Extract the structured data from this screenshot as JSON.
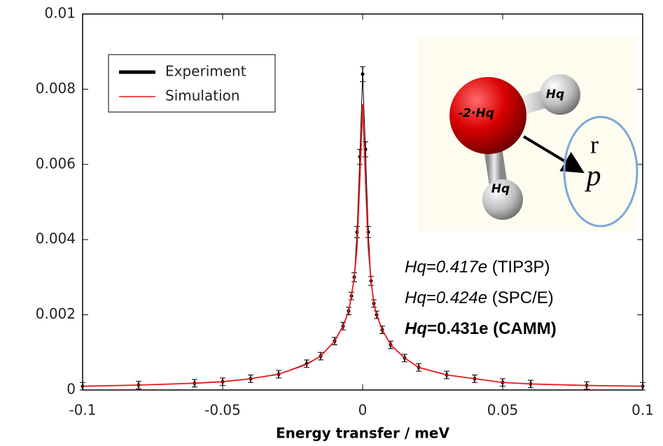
{
  "chart_data": {
    "type": "line",
    "xlabel": "Energy transfer / meV",
    "x": [
      -0.1,
      -0.08,
      -0.06,
      -0.05,
      -0.04,
      -0.03,
      -0.02,
      -0.015,
      -0.01,
      -0.007,
      -0.005,
      -0.004,
      -0.003,
      -0.002,
      -0.001,
      0,
      0.001,
      0.002,
      0.003,
      0.004,
      0.005,
      0.007,
      0.01,
      0.015,
      0.02,
      0.03,
      0.04,
      0.05,
      0.06,
      0.08,
      0.1
    ],
    "series": [
      {
        "name": "Experiment",
        "color": "#000000",
        "values": [
          0.0001,
          0.00013,
          0.00018,
          0.00022,
          0.0003,
          0.00042,
          0.0007,
          0.0009,
          0.0013,
          0.0017,
          0.0021,
          0.0025,
          0.003,
          0.0042,
          0.0062,
          0.0084,
          0.0064,
          0.0042,
          0.0029,
          0.0023,
          0.002,
          0.0016,
          0.0012,
          0.00085,
          0.0006,
          0.0004,
          0.0003,
          0.0002,
          0.00016,
          0.00012,
          0.0001
        ],
        "errors": [
          0.0001,
          0.0001,
          0.0001,
          0.0001,
          0.0001,
          0.0001,
          0.0001,
          0.0001,
          0.0001,
          0.0001,
          0.0001,
          0.0001,
          0.00012,
          0.00015,
          0.0002,
          0.0002,
          0.0002,
          0.00015,
          0.00012,
          0.0001,
          0.0001,
          0.0001,
          0.0001,
          0.0001,
          0.0001,
          0.0001,
          0.0001,
          0.0001,
          0.0001,
          0.0001,
          0.0001
        ]
      },
      {
        "name": "Simulation",
        "color": "#e8191c",
        "values": [
          0.0001,
          0.00013,
          0.00018,
          0.00022,
          0.0003,
          0.00042,
          0.00068,
          0.0009,
          0.0013,
          0.0017,
          0.0021,
          0.0025,
          0.003,
          0.0038,
          0.0056,
          0.0076,
          0.0056,
          0.0038,
          0.0029,
          0.0023,
          0.002,
          0.0016,
          0.0012,
          0.00085,
          0.0006,
          0.0004,
          0.0003,
          0.0002,
          0.00016,
          0.00012,
          0.0001
        ]
      }
    ],
    "xlim": [
      -0.1,
      0.1
    ],
    "xticks": [
      -0.1,
      -0.05,
      0,
      0.05,
      0.1
    ],
    "ylim": [
      0,
      0.01
    ],
    "yticks": [
      0,
      0.002,
      0.004,
      0.006,
      0.008,
      0.01
    ],
    "legend": "upper left",
    "annotations": {
      "atoms": [
        "Hq",
        "-2·Hq",
        "Hq"
      ],
      "vector_top": "r",
      "vector_bottom": "p",
      "charges": [
        {
          "emph": "Hq=0.417e ",
          "rest": "(TIP3P)",
          "bold": false
        },
        {
          "emph": "Hq=0.424e ",
          "rest": "(SPC/E)",
          "bold": false
        },
        {
          "emph": "Hq",
          "rest": "=0.431e (CAMM)",
          "bold": true
        }
      ]
    }
  }
}
